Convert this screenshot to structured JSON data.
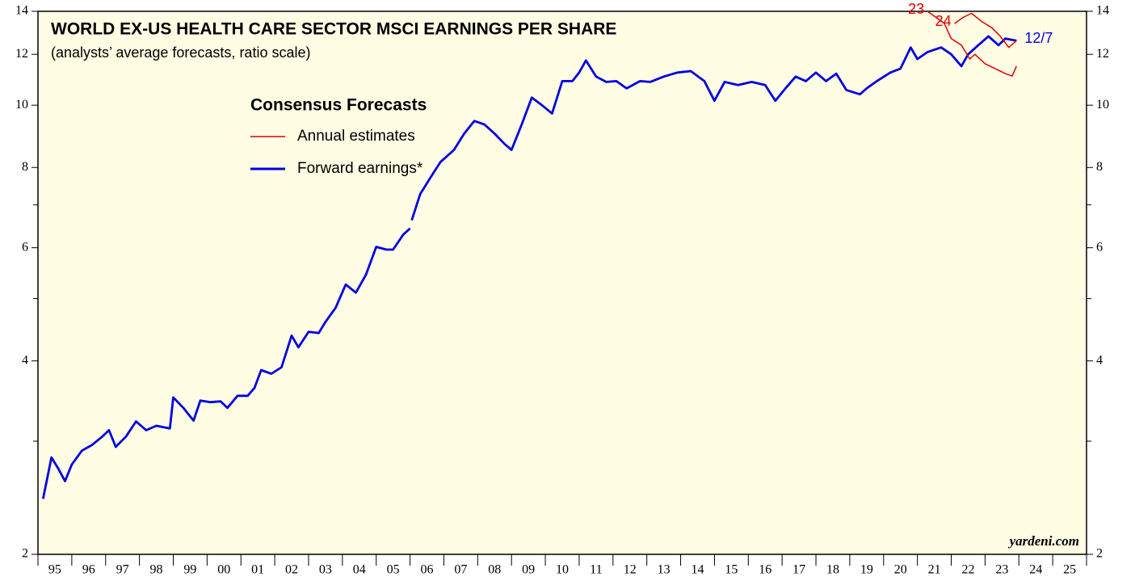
{
  "chart_data": {
    "type": "line",
    "title": "WORLD EX-US HEALTH CARE SECTOR MSCI EARNINGS PER SHARE",
    "subtitle": "(analysts’ average forecasts, ratio scale)",
    "source": "yardeni.com",
    "log_scale": true,
    "xlim": [
      1995,
      2026
    ],
    "xticks": [
      1995,
      1996,
      1997,
      1998,
      1999,
      2000,
      2001,
      2002,
      2003,
      2004,
      2005,
      2006,
      2007,
      2008,
      2009,
      2010,
      2011,
      2012,
      2013,
      2014,
      2015,
      2016,
      2017,
      2018,
      2019,
      2020,
      2021,
      2022,
      2023,
      2024,
      2025,
      2026
    ],
    "year_labels": [
      "95",
      "96",
      "97",
      "98",
      "99",
      "00",
      "01",
      "02",
      "03",
      "04",
      "05",
      "06",
      "07",
      "08",
      "09",
      "10",
      "11",
      "12",
      "13",
      "14",
      "15",
      "16",
      "17",
      "18",
      "19",
      "20",
      "21",
      "22",
      "23",
      "24",
      "25"
    ],
    "ylim": [
      2,
      14
    ],
    "yticks": [
      2,
      4,
      6,
      8,
      10,
      12,
      14
    ],
    "yminor": [
      3,
      5,
      7
    ],
    "legend": {
      "title": "Consensus Forecasts",
      "entries": [
        {
          "label": "Annual estimates",
          "color": "#e00000"
        },
        {
          "label": "Forward earnings*",
          "color": "#0000e0"
        }
      ]
    },
    "series": [
      {
        "name": "Forward earnings*",
        "color": "#0000e0",
        "end_label": "12/7",
        "x": [
          1995.15,
          1995.4,
          1995.6,
          1995.8,
          1996.0,
          1996.3,
          1996.6,
          1996.9,
          1997.1,
          1997.3,
          1997.6,
          1997.9,
          1998.2,
          1998.5,
          1998.9,
          1999.0,
          1999.3,
          1999.6,
          1999.8,
          2000.1,
          2000.4,
          2000.6,
          2000.9,
          2001.2,
          2001.4,
          2001.6,
          2001.9,
          2002.2,
          2002.5,
          2002.7,
          2003.0,
          2003.3,
          2003.5,
          2003.8,
          2004.1,
          2004.4,
          2004.7,
          2005.0,
          2005.3,
          2005.5,
          2005.8,
          2006.0,
          2006.02,
          2006.05,
          2006.3,
          2006.6,
          2006.9,
          2007.3,
          2007.6,
          2007.9,
          2008.2,
          2008.5,
          2008.8,
          2009.0,
          2009.3,
          2009.6,
          2009.9,
          2010.2,
          2010.5,
          2010.8,
          2011.0,
          2011.2,
          2011.5,
          2011.8,
          2012.1,
          2012.4,
          2012.8,
          2013.1,
          2013.5,
          2013.9,
          2014.3,
          2014.7,
          2015.0,
          2015.3,
          2015.7,
          2016.1,
          2016.5,
          2016.8,
          2017.1,
          2017.4,
          2017.7,
          2018.0,
          2018.3,
          2018.6,
          2018.9,
          2019.3,
          2019.5,
          2019.8,
          2020.2,
          2020.5,
          2020.8,
          2021.0,
          2021.3,
          2021.7,
          2022.0,
          2022.3,
          2022.5,
          2022.8,
          2023.1,
          2023.4,
          2023.6,
          2023.93
        ],
        "values": [
          2.44,
          2.83,
          2.72,
          2.6,
          2.76,
          2.9,
          2.96,
          3.05,
          3.12,
          2.94,
          3.05,
          3.22,
          3.12,
          3.17,
          3.14,
          3.51,
          3.38,
          3.23,
          3.47,
          3.45,
          3.46,
          3.38,
          3.53,
          3.53,
          3.63,
          3.87,
          3.82,
          3.91,
          4.38,
          4.2,
          4.44,
          4.42,
          4.6,
          4.84,
          5.26,
          5.11,
          5.45,
          6.02,
          5.96,
          5.96,
          6.29,
          6.43,
          null,
          6.62,
          7.27,
          7.71,
          8.16,
          8.52,
          9.03,
          9.45,
          9.33,
          9.03,
          8.7,
          8.52,
          9.33,
          10.28,
          10.0,
          9.71,
          10.9,
          10.9,
          11.24,
          11.74,
          11.08,
          10.87,
          10.9,
          10.62,
          10.9,
          10.87,
          11.08,
          11.24,
          11.3,
          10.9,
          10.16,
          10.87,
          10.75,
          10.87,
          10.75,
          10.16,
          10.62,
          11.08,
          10.9,
          11.24,
          10.9,
          11.2,
          10.56,
          10.4,
          10.62,
          10.9,
          11.24,
          11.4,
          12.3,
          11.8,
          12.1,
          12.3,
          12.0,
          11.5,
          12.0,
          12.4,
          12.8,
          12.4,
          12.7,
          12.6
        ]
      },
      {
        "name": "23",
        "color": "#e00000",
        "x": [
          2021.3,
          2021.55,
          2021.8,
          2022.0,
          2022.3,
          2022.55,
          2022.7,
          2023.0,
          2023.3,
          2023.6,
          2023.8,
          2023.93
        ],
        "values": [
          14.0,
          13.7,
          13.4,
          12.7,
          12.4,
          11.8,
          12.0,
          11.6,
          11.4,
          11.2,
          11.1,
          11.5
        ]
      },
      {
        "name": "24",
        "color": "#e00000",
        "x": [
          2022.1,
          2022.35,
          2022.6,
          2022.9,
          2023.2,
          2023.45,
          2023.7,
          2023.93
        ],
        "values": [
          13.4,
          13.7,
          13.9,
          13.5,
          13.2,
          12.8,
          12.3,
          12.6
        ]
      }
    ]
  }
}
